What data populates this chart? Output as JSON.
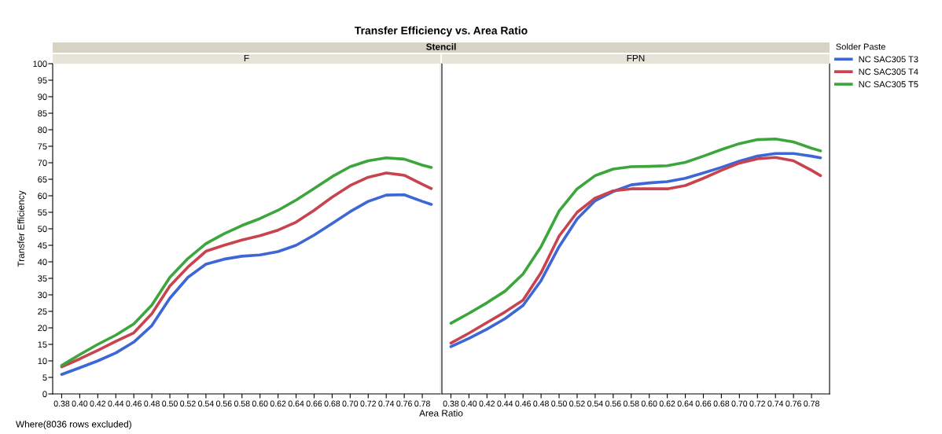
{
  "chart_data": [
    {
      "type": "line",
      "title": "Transfer Efficiency vs. Area Ratio",
      "subtitle": "Stencil",
      "legend_title": null,
      "ylabel": "Transfer Efficiency",
      "xlabel": "Area Ratio",
      "annotations": [
        "F",
        "Where(8036 rows excluded)"
      ],
      "x": [
        0.38,
        0.4,
        0.42,
        0.44,
        0.46,
        0.48,
        0.5,
        0.52,
        0.54,
        0.56,
        0.58,
        0.6,
        0.62,
        0.64,
        0.66,
        0.68,
        0.7,
        0.72,
        0.74,
        0.76,
        0.78,
        0.79
      ],
      "xlim": [
        0.37,
        0.8
      ],
      "xticks": [
        0.38,
        {
          "value": 0.4,
          "label": "0.40"
        },
        0.42,
        0.44,
        0.46,
        0.48,
        {
          "value": 0.5,
          "label": "0.50"
        },
        0.52,
        0.54,
        0.56,
        0.58,
        {
          "value": 0.6,
          "label": "0.60"
        },
        0.62,
        0.64,
        0.66,
        0.68,
        {
          "value": 0.7,
          "label": "0.70"
        },
        0.72,
        0.74,
        0.76,
        0.78
      ],
      "ylim": [
        0,
        100
      ],
      "yticks": [
        0,
        5,
        10,
        15,
        20,
        25,
        30,
        35,
        40,
        45,
        50,
        55,
        60,
        65,
        70,
        75,
        80,
        85,
        90,
        95,
        100
      ],
      "grid": false,
      "legend": false,
      "marker": "none",
      "line_style": "solid",
      "series": [
        {
          "color": "#3d66d6",
          "values": [
            5.9,
            7.9,
            10.0,
            12.4,
            15.7,
            20.7,
            29.0,
            35.3,
            39.3,
            40.8,
            41.7,
            42.1,
            43.1,
            45.0,
            48.1,
            51.6,
            55.2,
            58.3,
            60.2,
            60.3,
            58.3,
            57.4
          ]
        },
        {
          "color": "#c9434f",
          "values": [
            8.2,
            10.6,
            13.2,
            15.9,
            18.5,
            24.3,
            32.7,
            38.4,
            43.2,
            45.0,
            46.6,
            47.9,
            49.6,
            52.0,
            55.6,
            59.6,
            63.1,
            65.6,
            66.9,
            66.2,
            63.5,
            62.2
          ]
        },
        {
          "color": "#3ca63c",
          "values": [
            8.6,
            11.9,
            15.0,
            17.8,
            21.2,
            26.9,
            35.3,
            41.0,
            45.5,
            48.5,
            51.0,
            53.1,
            55.6,
            58.7,
            62.2,
            65.8,
            68.8,
            70.6,
            71.5,
            71.1,
            69.3,
            68.6
          ]
        }
      ]
    },
    {
      "type": "line",
      "legend_title": "Solder Paste",
      "annotations": [
        "FPN"
      ],
      "tick_labels": "x",
      "x": [
        0.38,
        0.4,
        0.42,
        0.44,
        0.46,
        0.48,
        0.5,
        0.52,
        0.54,
        0.56,
        0.58,
        0.6,
        0.62,
        0.64,
        0.66,
        0.68,
        0.7,
        0.72,
        0.74,
        0.76,
        0.78,
        0.79
      ],
      "xlim": [
        0.37,
        0.8
      ],
      "xticks": [
        0.38,
        {
          "value": 0.4,
          "label": "0.40"
        },
        0.42,
        0.44,
        0.46,
        0.48,
        {
          "value": 0.5,
          "label": "0.50"
        },
        0.52,
        0.54,
        0.56,
        0.58,
        {
          "value": 0.6,
          "label": "0.60"
        },
        0.62,
        0.64,
        0.66,
        0.68,
        {
          "value": 0.7,
          "label": "0.70"
        },
        0.72,
        0.74,
        0.76,
        0.78
      ],
      "ylim": [
        0,
        100
      ],
      "grid": false,
      "legend": "right",
      "marker": "none",
      "line_style": "solid",
      "series": [
        {
          "name": "NC SAC305 T3",
          "color": "#3d66d6",
          "values": [
            14.3,
            16.8,
            19.6,
            22.8,
            26.8,
            34.3,
            44.6,
            53.0,
            58.5,
            61.3,
            63.3,
            63.9,
            64.3,
            65.3,
            66.9,
            68.6,
            70.5,
            72.0,
            72.8,
            72.8,
            72.0,
            71.5
          ]
        },
        {
          "name": "NC SAC305 T4",
          "color": "#c9434f",
          "values": [
            15.4,
            18.4,
            21.6,
            24.8,
            28.4,
            36.7,
            47.8,
            55.0,
            59.3,
            61.5,
            62.1,
            62.1,
            62.1,
            63.1,
            65.3,
            67.7,
            69.9,
            71.2,
            71.6,
            70.6,
            67.7,
            66.1
          ]
        },
        {
          "name": "NC SAC305 T5",
          "color": "#3ca63c",
          "values": [
            21.4,
            24.4,
            27.6,
            31.1,
            36.3,
            44.6,
            55.4,
            62.1,
            66.1,
            68.1,
            68.8,
            68.9,
            69.1,
            70.1,
            72.0,
            74.0,
            75.8,
            77.0,
            77.2,
            76.3,
            74.4,
            73.6
          ]
        }
      ]
    }
  ]
}
